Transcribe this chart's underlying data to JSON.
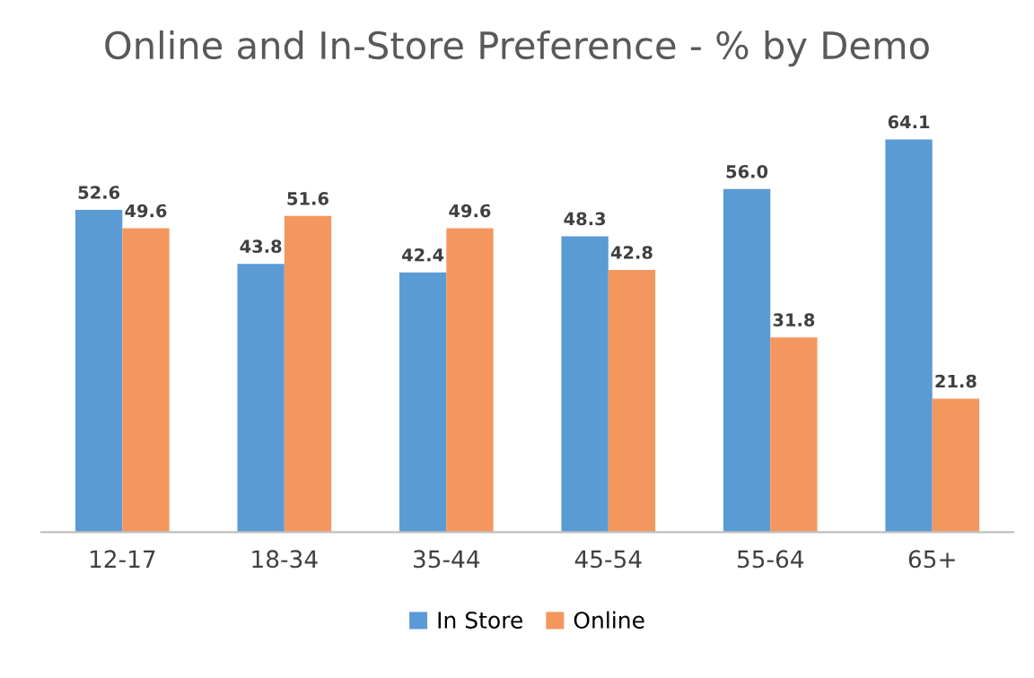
{
  "chart_data": {
    "type": "bar",
    "title": "Online and In-Store Preference - % by Demo",
    "categories": [
      "12-17",
      "18-34",
      "35-44",
      "45-54",
      "55-64",
      "65+"
    ],
    "series": [
      {
        "name": "In Store",
        "color": "#5b9bd5",
        "values": [
          52.6,
          43.8,
          42.4,
          48.3,
          56.0,
          64.1
        ],
        "value_labels": [
          "52.6",
          "43.8",
          "42.4",
          "48.3",
          "56.0",
          "64.1"
        ]
      },
      {
        "name": "Online",
        "color": "#f4975e",
        "values": [
          49.6,
          51.6,
          49.6,
          42.8,
          31.8,
          21.8
        ],
        "value_labels": [
          "49.6",
          "51.6",
          "49.6",
          "42.8",
          "31.8",
          "21.8"
        ]
      }
    ],
    "legend": "bottom",
    "grid": false
  }
}
